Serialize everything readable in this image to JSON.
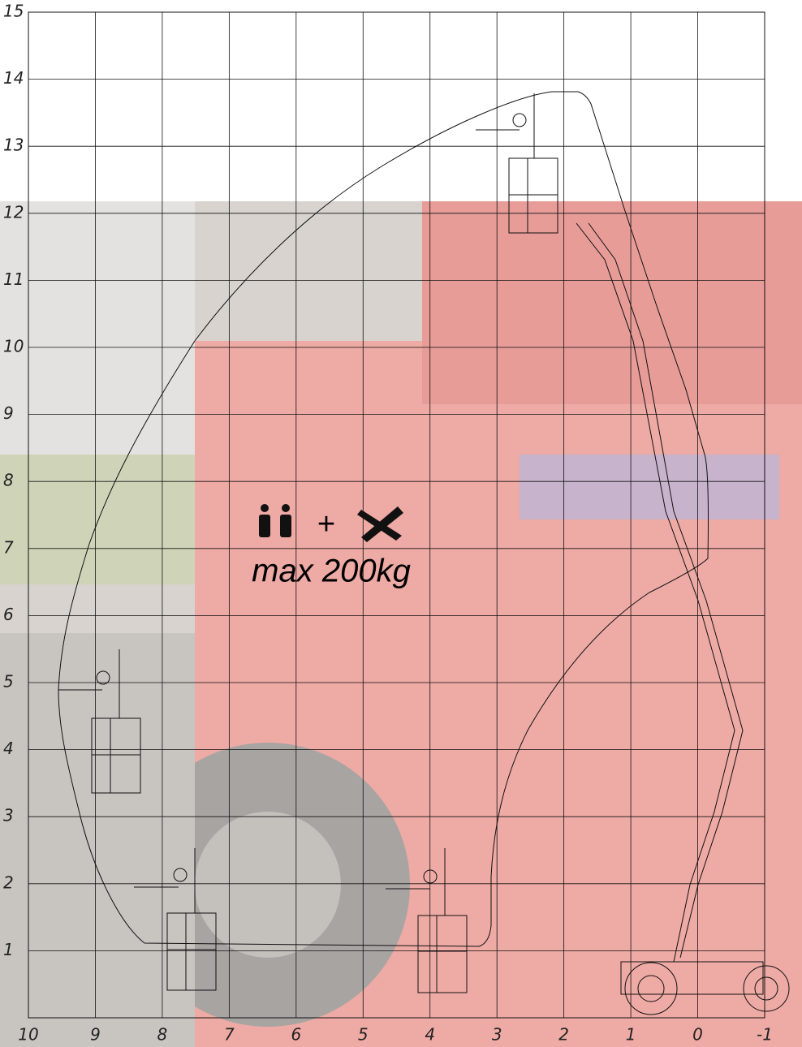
{
  "diagram": {
    "x_axis": {
      "labels": [
        "10",
        "9",
        "8",
        "7",
        "6",
        "5",
        "4",
        "3",
        "2",
        "1",
        "0",
        "-1"
      ]
    },
    "y_axis": {
      "labels": [
        "15",
        "14",
        "13",
        "12",
        "11",
        "10",
        "9",
        "8",
        "7",
        "6",
        "5",
        "4",
        "3",
        "2",
        "1"
      ]
    },
    "payload": {
      "plus": "+",
      "text": "max 200kg"
    }
  }
}
